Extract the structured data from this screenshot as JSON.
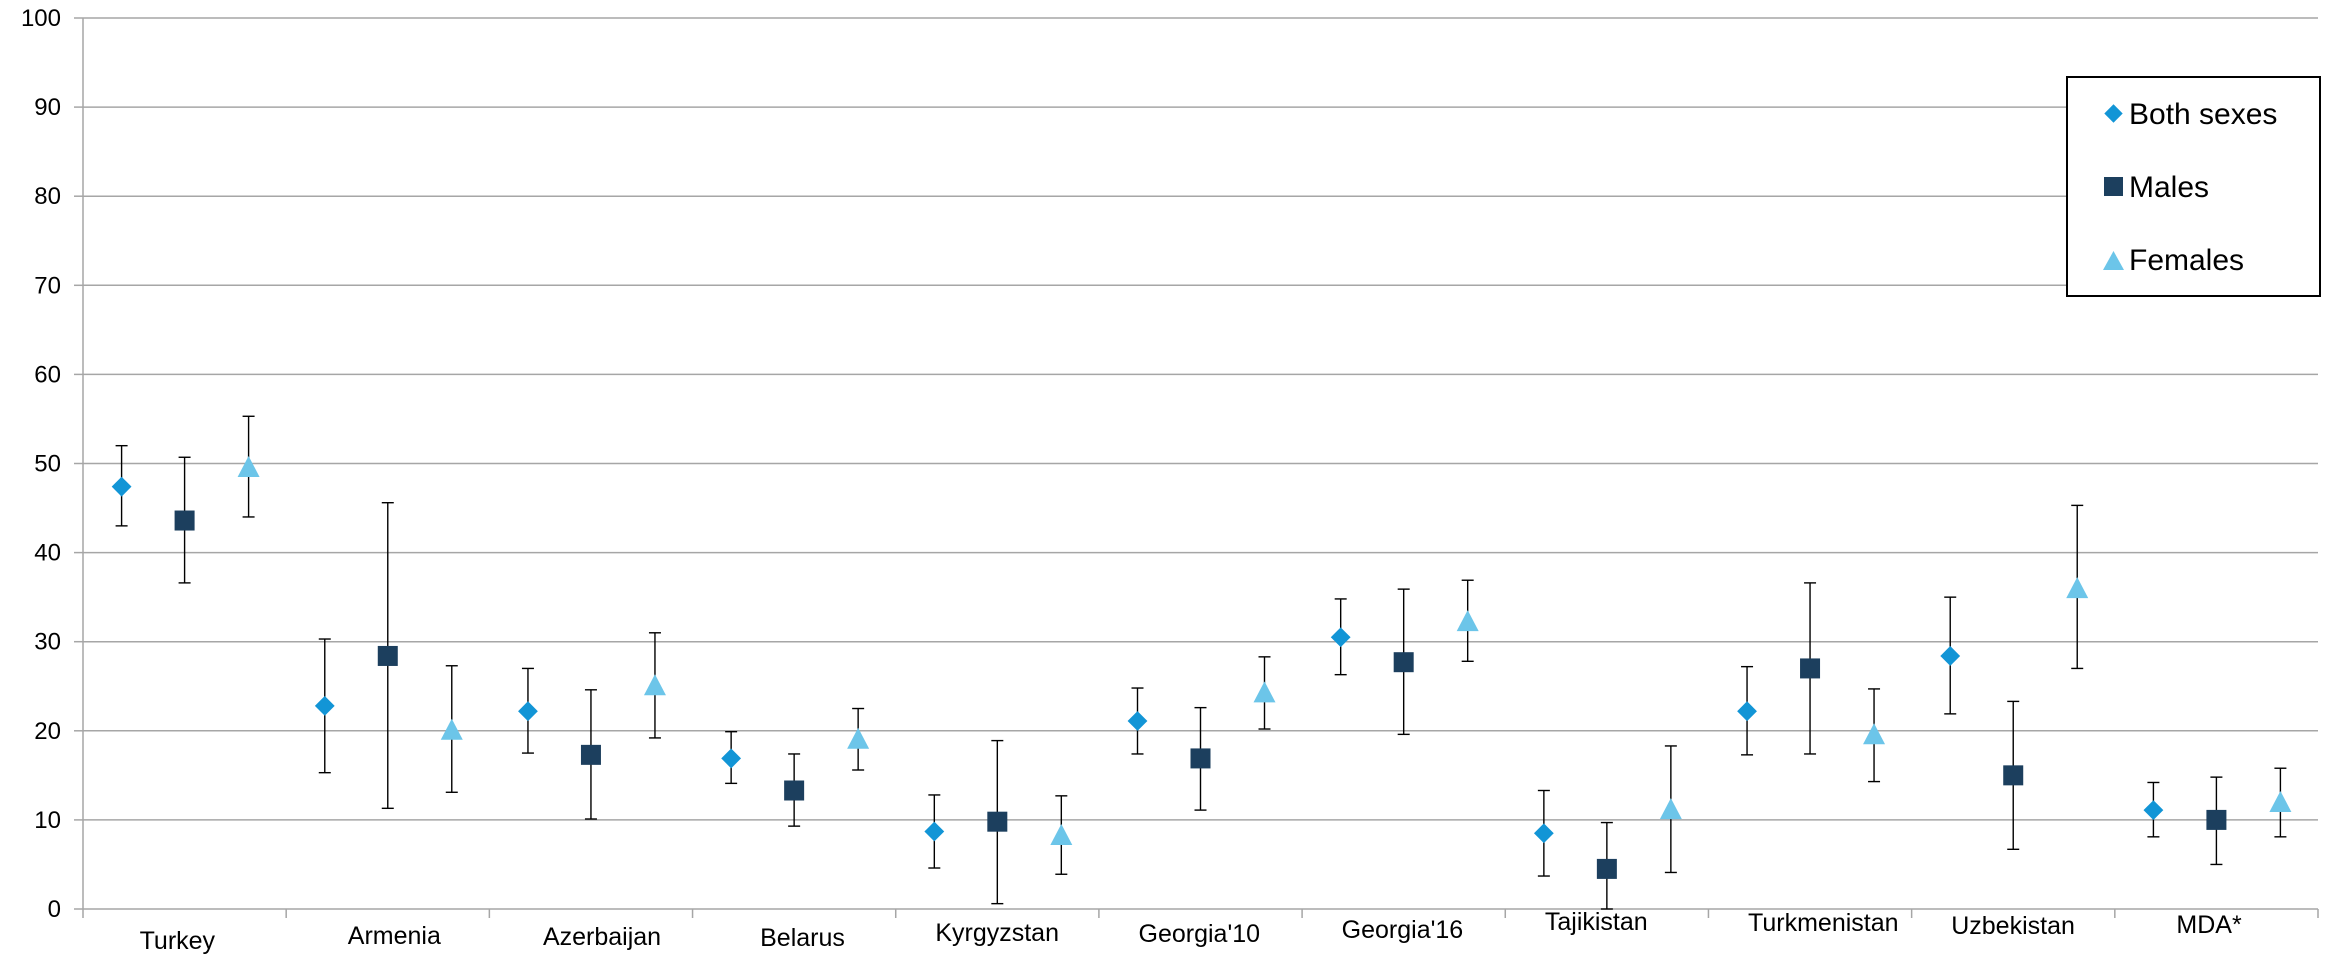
{
  "colors": {
    "both": "#1295d6",
    "males": "#1c3f5e",
    "females": "#6cc5e9",
    "grid": "#a6a6a6",
    "axis": "#a6a6a6",
    "errorbar": "#000000"
  },
  "chart_data": {
    "type": "scatter",
    "title": "",
    "xlabel": "",
    "ylabel": "",
    "ylim": [
      0,
      100
    ],
    "yticks": [
      0,
      10,
      20,
      30,
      40,
      50,
      60,
      70,
      80,
      90,
      100
    ],
    "grid": true,
    "legend_position": "top-right",
    "categories": [
      "Turkey",
      "Armenia",
      "Azerbaijan",
      "Belarus",
      "Kyrgyzstan",
      "Georgia'10",
      "Georgia'16",
      "Tajikistan",
      "Turkmenistan",
      "Uzbekistan",
      "MDA*"
    ],
    "series": [
      {
        "name": "Both sexes",
        "marker": "diamond",
        "values": [
          47.4,
          22.8,
          22.2,
          16.9,
          8.7,
          21.1,
          30.5,
          8.5,
          22.2,
          28.4,
          11.1
        ],
        "lower": [
          43.0,
          15.3,
          17.5,
          14.1,
          4.6,
          17.4,
          26.3,
          3.7,
          17.3,
          21.9,
          8.1
        ],
        "upper": [
          52.0,
          30.3,
          27.0,
          19.9,
          12.8,
          24.8,
          34.8,
          13.3,
          27.2,
          35.0,
          14.2
        ]
      },
      {
        "name": "Males",
        "marker": "square",
        "values": [
          43.6,
          28.4,
          17.3,
          13.3,
          9.8,
          16.9,
          27.7,
          4.5,
          27.0,
          15.0,
          10.0
        ],
        "lower": [
          36.6,
          11.3,
          10.1,
          9.3,
          0.6,
          11.1,
          19.6,
          0.0,
          17.4,
          6.7,
          5.0
        ],
        "upper": [
          50.7,
          45.6,
          24.6,
          17.4,
          18.9,
          22.6,
          35.9,
          9.7,
          36.6,
          23.3,
          14.8
        ]
      },
      {
        "name": "Females",
        "marker": "triangle",
        "values": [
          49.5,
          20.0,
          25.0,
          19.0,
          8.2,
          24.2,
          32.2,
          11.1,
          19.5,
          35.9,
          11.9
        ],
        "lower": [
          44.0,
          13.1,
          19.2,
          15.6,
          3.9,
          20.2,
          27.8,
          4.1,
          14.3,
          27.0,
          8.1
        ],
        "upper": [
          55.3,
          27.3,
          31.0,
          22.5,
          12.7,
          28.3,
          36.9,
          18.3,
          24.7,
          45.3,
          15.8
        ]
      }
    ]
  }
}
